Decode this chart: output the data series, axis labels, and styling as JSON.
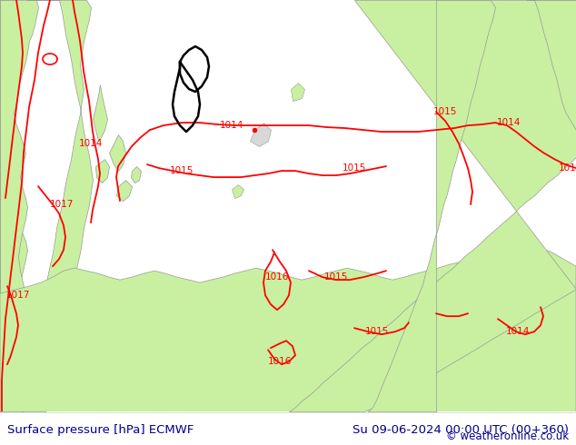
{
  "title_left": "Surface pressure [hPa] ECMWF",
  "title_right": "Su 09-06-2024 00:00 UTC (00+360)",
  "copyright": "© weatheronline.co.uk",
  "bg_color": "#ffffff",
  "land_color": "#c8f0a0",
  "sea_color": "#d0d0d0",
  "contour_color_red": "#ff0000",
  "contour_color_black": "#000000",
  "border_color": "#999999",
  "title_color": "#00008b",
  "font_size_title": 9.5,
  "font_size_labels": 7.5
}
